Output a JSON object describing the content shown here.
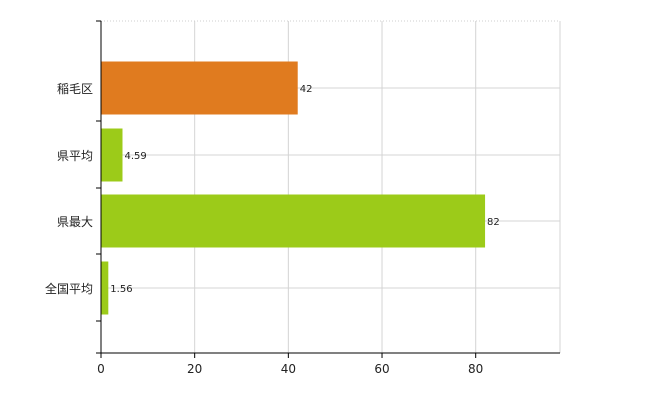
{
  "chart_data": {
    "type": "bar",
    "orientation": "horizontal",
    "categories": [
      "稲毛区",
      "県平均",
      "県最大",
      "全国平均"
    ],
    "values": [
      42,
      4.59,
      82,
      1.56
    ],
    "value_labels": [
      "42",
      "4.59",
      "82",
      "1.56"
    ],
    "colors": [
      "#e07b1f",
      "#9ccb19",
      "#9ccb19",
      "#9ccb19"
    ],
    "xlim": [
      0,
      98
    ],
    "xticks": [
      "0",
      "20",
      "40",
      "60",
      "80"
    ],
    "grid": true
  }
}
